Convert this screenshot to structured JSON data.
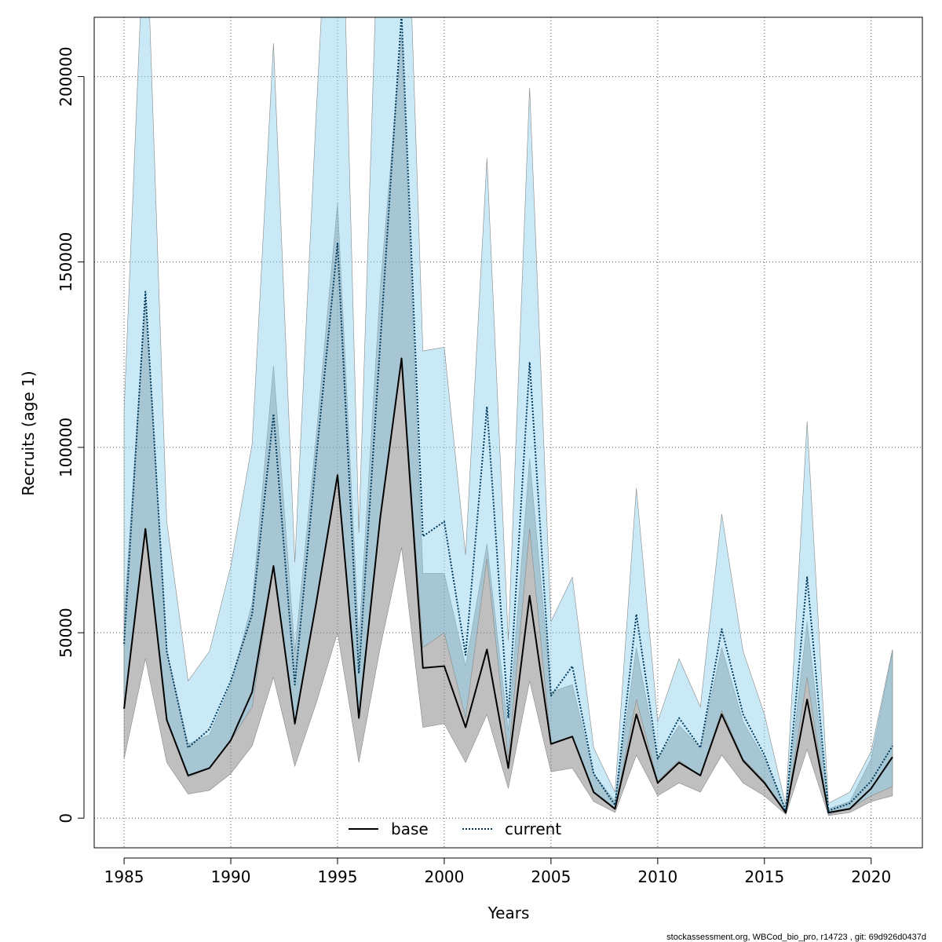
{
  "chart_data": {
    "type": "line",
    "xlabel": "Years",
    "ylabel": "Recruits (age 1)",
    "xlim": [
      1983.6,
      1985.4
    ],
    "ylim": [
      -8000,
      216000
    ],
    "xticks": [
      1985,
      1990,
      1995,
      2000,
      2005,
      2010,
      2015,
      2020
    ],
    "yticks": [
      0,
      50000,
      100000,
      150000,
      200000
    ],
    "grid": true,
    "legend_position": "bottom-center",
    "x": [
      1985,
      1986,
      1987,
      1988,
      1989,
      1990,
      1991,
      1992,
      1993,
      1994,
      1995,
      1996,
      1997,
      1998,
      1999,
      2000,
      2001,
      2002,
      2003,
      2004,
      2005,
      2006,
      2007,
      2008,
      2009,
      2010,
      2011,
      2012,
      2013,
      2014,
      2015,
      2016,
      2017,
      2018,
      2019,
      2020,
      2021
    ],
    "series": [
      {
        "name": "base",
        "color": "#000000",
        "dash": "solid",
        "band_color": "#808080",
        "values": [
          29500,
          78000,
          26500,
          11500,
          13500,
          21000,
          34000,
          68000,
          25500,
          58000,
          92500,
          27000,
          81000,
          124000,
          40500,
          41000,
          24500,
          45500,
          13500,
          60000,
          20000,
          22000,
          7000,
          2500,
          28000,
          9500,
          15000,
          11500,
          28000,
          15500,
          9500,
          1500,
          32000,
          1500,
          2500,
          8000,
          16500
        ],
        "lower": [
          16000,
          43000,
          15000,
          6500,
          7500,
          12000,
          19500,
          38000,
          14000,
          31000,
          50000,
          15000,
          46000,
          73000,
          24500,
          25500,
          15000,
          28000,
          8000,
          37000,
          12500,
          13500,
          4500,
          1500,
          17000,
          6000,
          9500,
          7000,
          17000,
          9500,
          6000,
          1000,
          18500,
          700,
          1500,
          4500,
          6000
        ],
        "upper": [
          54000,
          140000,
          45000,
          20000,
          22500,
          36000,
          58000,
          122000,
          45000,
          103000,
          166000,
          48000,
          143000,
          211000,
          66000,
          66000,
          41000,
          74000,
          23500,
          97000,
          34000,
          36000,
          12000,
          4500,
          46000,
          16000,
          25000,
          19000,
          46000,
          26000,
          16000,
          2500,
          53000,
          2500,
          4500,
          16000,
          45000
        ]
      },
      {
        "name": "current",
        "color": "#003a5c",
        "dash": "dotted",
        "band_color": "#87ceeb",
        "values": [
          47000,
          142000,
          45000,
          19000,
          24000,
          37000,
          55000,
          109000,
          36000,
          97000,
          155000,
          39000,
          128000,
          217000,
          76000,
          80000,
          44000,
          111000,
          27000,
          123000,
          33000,
          41000,
          12000,
          3500,
          55000,
          16000,
          27000,
          19000,
          51000,
          28000,
          17000,
          2000,
          65000,
          2000,
          4000,
          10000,
          19500
        ],
        "lower": [
          30000,
          78000,
          26000,
          11000,
          13500,
          21000,
          30000,
          68000,
          25000,
          58000,
          93000,
          27000,
          81000,
          124000,
          46000,
          50000,
          27000,
          70000,
          16000,
          78000,
          20000,
          22000,
          7000,
          2500,
          32000,
          10000,
          15500,
          11500,
          29000,
          16000,
          10000,
          1200,
          38000,
          1000,
          2500,
          6000,
          8500
        ],
        "upper": [
          110000,
          250000,
          80000,
          37000,
          45000,
          68000,
          101000,
          209000,
          69000,
          190000,
          300000,
          77000,
          260000,
          300000,
          126000,
          127000,
          71000,
          178000,
          48000,
          197000,
          53000,
          65000,
          19000,
          7000,
          89000,
          26000,
          43000,
          30000,
          82000,
          45000,
          28000,
          3500,
          107000,
          4000,
          7000,
          18000,
          45500
        ]
      }
    ]
  },
  "footer": {
    "text": "stockassessment.org, WBCod_bio_pro, r14723 , git: 69d926d0437d"
  }
}
